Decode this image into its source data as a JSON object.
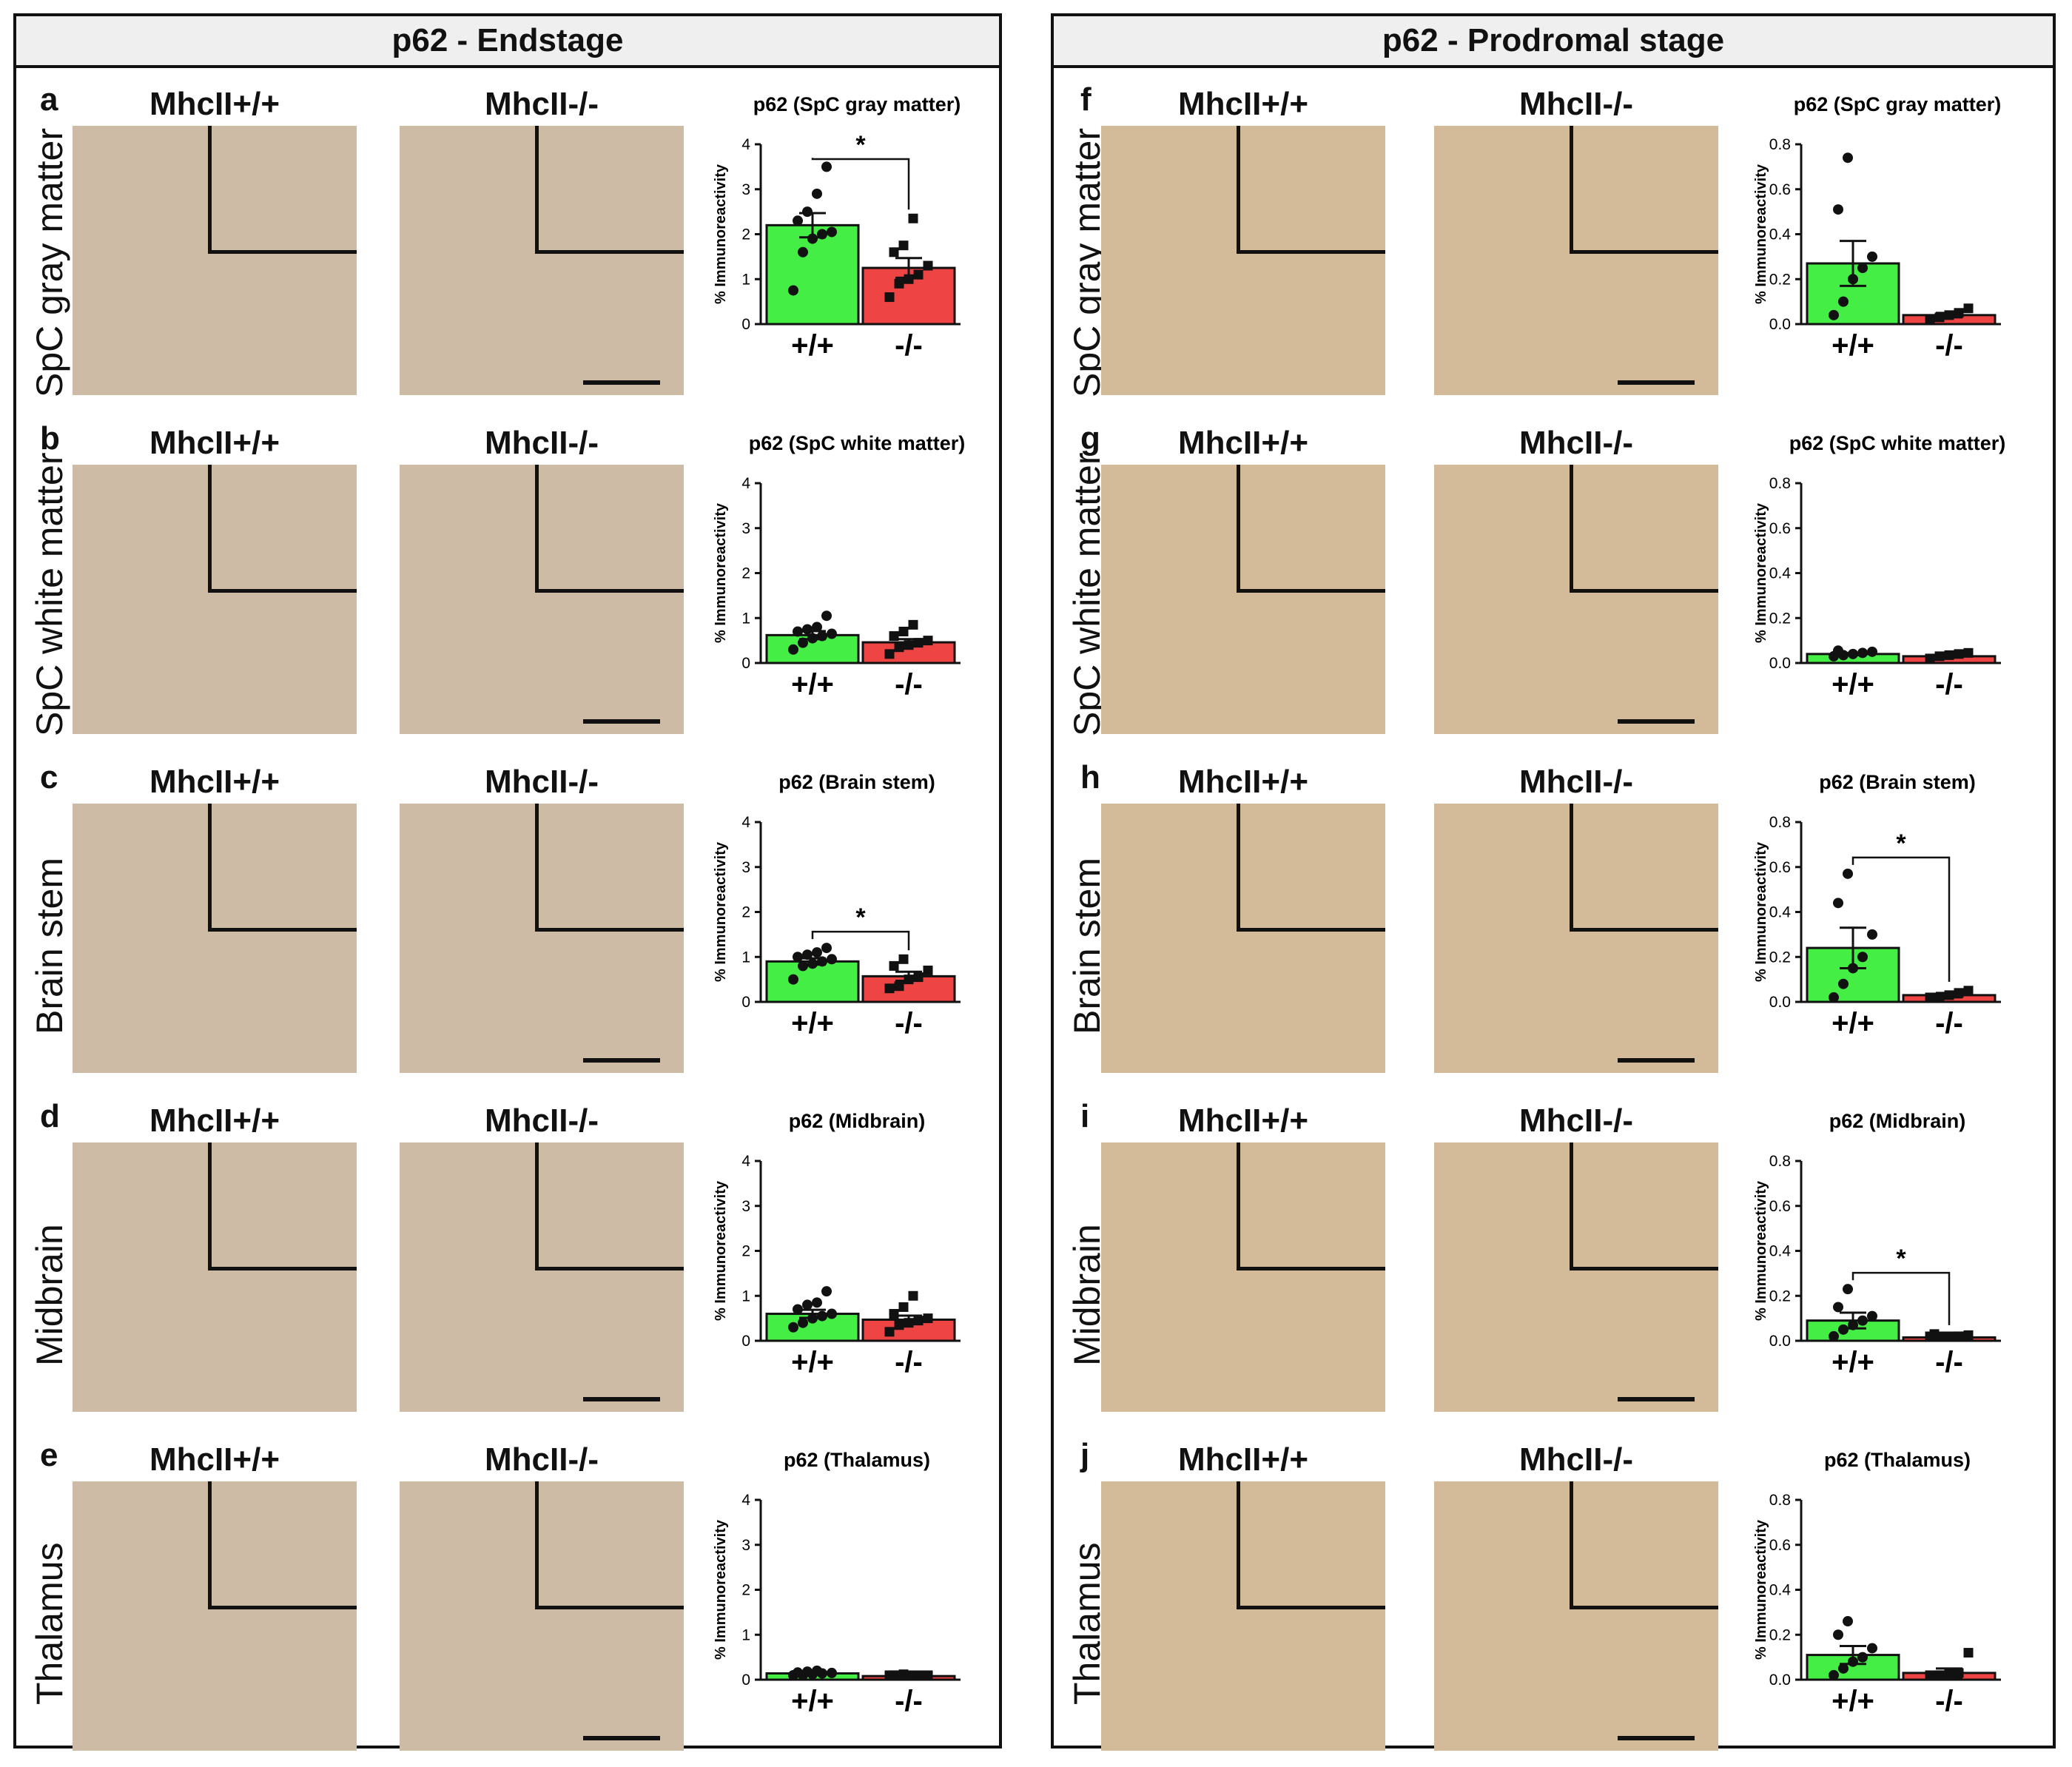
{
  "colors": {
    "green_bar": "#44ee44",
    "red_bar": "#ee4444",
    "tissue_left": "#cdbba6",
    "tissue_right": "#d3ba98"
  },
  "panels": [
    {
      "title": "p62 - Endstage",
      "rows": [
        {
          "letter": "a",
          "region": "SpC gray matter",
          "col1_title": "MhcII+/+",
          "col2_title": "MhcII-/-"
        },
        {
          "letter": "b",
          "region": "SpC white matter",
          "col1_title": "MhcII+/+",
          "col2_title": "MhcII-/-"
        },
        {
          "letter": "c",
          "region": "Brain stem",
          "col1_title": "MhcII+/+",
          "col2_title": "MhcII-/-"
        },
        {
          "letter": "d",
          "region": "Midbrain",
          "col1_title": "MhcII+/+",
          "col2_title": "MhcII-/-"
        },
        {
          "letter": "e",
          "region": "Thalamus",
          "col1_title": "MhcII+/+",
          "col2_title": "MhcII-/-"
        }
      ]
    },
    {
      "title": "p62 - Prodromal stage",
      "rows": [
        {
          "letter": "f",
          "region": "SpC gray matter",
          "col1_title": "MhcII+/+",
          "col2_title": "MhcII-/-"
        },
        {
          "letter": "g",
          "region": "SpC white matter",
          "col1_title": "MhcII+/+",
          "col2_title": "MhcII-/-"
        },
        {
          "letter": "h",
          "region": "Brain stem",
          "col1_title": "MhcII+/+",
          "col2_title": "MhcII-/-"
        },
        {
          "letter": "i",
          "region": "Midbrain",
          "col1_title": "MhcII+/+",
          "col2_title": "MhcII-/-"
        },
        {
          "letter": "j",
          "region": "Thalamus",
          "col1_title": "MhcII+/+",
          "col2_title": "MhcII-/-"
        }
      ]
    }
  ],
  "chart_data": [
    {
      "type": "bar",
      "panel": "a",
      "title": "p62 (SpC gray matter)",
      "ylabel": "% Immunoreactivity",
      "ylim": [
        0,
        4
      ],
      "yticks": [
        "0",
        "1",
        "2",
        "3",
        "4"
      ],
      "categories": [
        "+/+",
        "-/-"
      ],
      "values": [
        2.2,
        1.25
      ],
      "errors": [
        0.27,
        0.22
      ],
      "points": [
        [
          0.75,
          1.6,
          1.9,
          2.0,
          2.05,
          2.3,
          2.5,
          2.9,
          3.5
        ],
        [
          0.6,
          0.9,
          1.0,
          1.1,
          1.3,
          1.6,
          1.75,
          2.35
        ]
      ],
      "significance": "*"
    },
    {
      "type": "bar",
      "panel": "b",
      "title": "p62 (SpC white matter)",
      "ylabel": "% Immunoreactivity",
      "ylim": [
        0,
        4
      ],
      "yticks": [
        "0",
        "1",
        "2",
        "3",
        "4"
      ],
      "categories": [
        "+/+",
        "-/-"
      ],
      "values": [
        0.62,
        0.46
      ],
      "errors": [
        0.09,
        0.07
      ],
      "points": [
        [
          0.3,
          0.45,
          0.55,
          0.6,
          0.65,
          0.7,
          0.75,
          0.8,
          1.05
        ],
        [
          0.2,
          0.35,
          0.4,
          0.45,
          0.5,
          0.6,
          0.7,
          0.85
        ]
      ],
      "significance": ""
    },
    {
      "type": "bar",
      "panel": "c",
      "title": "p62 (Brain stem)",
      "ylabel": "% Immunoreactivity",
      "ylim": [
        0,
        4
      ],
      "yticks": [
        "0",
        "1",
        "2",
        "3",
        "4"
      ],
      "categories": [
        "+/+",
        "-/-"
      ],
      "values": [
        0.9,
        0.57
      ],
      "errors": [
        0.07,
        0.1
      ],
      "points": [
        [
          0.5,
          0.8,
          0.85,
          0.9,
          0.95,
          1.0,
          1.05,
          1.1,
          1.2
        ],
        [
          0.3,
          0.35,
          0.5,
          0.55,
          0.7,
          0.8,
          0.95
        ]
      ],
      "significance": "*"
    },
    {
      "type": "bar",
      "panel": "d",
      "title": "p62 (Midbrain)",
      "ylabel": "% Immunoreactivity",
      "ylim": [
        0,
        4
      ],
      "yticks": [
        "0",
        "1",
        "2",
        "3",
        "4"
      ],
      "categories": [
        "+/+",
        "-/-"
      ],
      "values": [
        0.6,
        0.47
      ],
      "errors": [
        0.09,
        0.09
      ],
      "points": [
        [
          0.3,
          0.4,
          0.5,
          0.55,
          0.6,
          0.7,
          0.8,
          0.85,
          1.1
        ],
        [
          0.2,
          0.35,
          0.4,
          0.45,
          0.5,
          0.6,
          0.75,
          1.0
        ]
      ],
      "significance": ""
    },
    {
      "type": "bar",
      "panel": "e",
      "title": "p62 (Thalamus)",
      "ylabel": "% Immunoreactivity",
      "ylim": [
        0,
        4
      ],
      "yticks": [
        "0",
        "1",
        "2",
        "3",
        "4"
      ],
      "categories": [
        "+/+",
        "-/-"
      ],
      "values": [
        0.14,
        0.08
      ],
      "errors": [
        0.02,
        0.02
      ],
      "points": [
        [
          0.08,
          0.1,
          0.12,
          0.14,
          0.15,
          0.16,
          0.18,
          0.2
        ],
        [
          0.04,
          0.05,
          0.06,
          0.07,
          0.08,
          0.1,
          0.12
        ]
      ],
      "significance": ""
    },
    {
      "type": "bar",
      "panel": "f",
      "title": "p62 (SpC gray matter)",
      "ylabel": "% Immunoreactivity",
      "ylim": [
        0,
        0.8
      ],
      "yticks": [
        "0.0",
        "0.2",
        "0.4",
        "0.6",
        "0.8"
      ],
      "categories": [
        "+/+",
        "-/-"
      ],
      "values": [
        0.27,
        0.04
      ],
      "errors": [
        0.1,
        0.01
      ],
      "points": [
        [
          0.04,
          0.1,
          0.2,
          0.25,
          0.3,
          0.51,
          0.74
        ],
        [
          0.02,
          0.03,
          0.04,
          0.05,
          0.07
        ]
      ],
      "significance": ""
    },
    {
      "type": "bar",
      "panel": "g",
      "title": "p62 (SpC white matter)",
      "ylabel": "% Immunoreactivity",
      "ylim": [
        0,
        0.8
      ],
      "yticks": [
        "0.0",
        "0.2",
        "0.4",
        "0.6",
        "0.8"
      ],
      "categories": [
        "+/+",
        "-/-"
      ],
      "values": [
        0.04,
        0.03
      ],
      "errors": [
        0.005,
        0.005
      ],
      "points": [
        [
          0.03,
          0.035,
          0.04,
          0.045,
          0.05,
          0.055
        ],
        [
          0.02,
          0.03,
          0.035,
          0.04,
          0.045
        ]
      ],
      "significance": ""
    },
    {
      "type": "bar",
      "panel": "h",
      "title": "p62 (Brain stem)",
      "ylabel": "% Immunoreactivity",
      "ylim": [
        0,
        0.8
      ],
      "yticks": [
        "0.0",
        "0.2",
        "0.4",
        "0.6",
        "0.8"
      ],
      "categories": [
        "+/+",
        "-/-"
      ],
      "values": [
        0.24,
        0.03
      ],
      "errors": [
        0.09,
        0.01
      ],
      "points": [
        [
          0.02,
          0.08,
          0.15,
          0.2,
          0.3,
          0.44,
          0.57
        ],
        [
          0.01,
          0.02,
          0.03,
          0.04,
          0.05
        ]
      ],
      "significance": "*"
    },
    {
      "type": "bar",
      "panel": "i",
      "title": "p62 (Midbrain)",
      "ylabel": "% Immunoreactivity",
      "ylim": [
        0,
        0.8
      ],
      "yticks": [
        "0.0",
        "0.2",
        "0.4",
        "0.6",
        "0.8"
      ],
      "categories": [
        "+/+",
        "-/-"
      ],
      "values": [
        0.09,
        0.015
      ],
      "errors": [
        0.035,
        0.005
      ],
      "points": [
        [
          0.02,
          0.05,
          0.07,
          0.09,
          0.11,
          0.15,
          0.23
        ],
        [
          0.005,
          0.01,
          0.015,
          0.02,
          0.025,
          0.03
        ]
      ],
      "significance": "*"
    },
    {
      "type": "bar",
      "panel": "j",
      "title": "p62 (Thalamus)",
      "ylabel": "% Immunoreactivity",
      "ylim": [
        0,
        0.8
      ],
      "yticks": [
        "0.0",
        "0.2",
        "0.4",
        "0.6",
        "0.8"
      ],
      "categories": [
        "+/+",
        "-/-"
      ],
      "values": [
        0.11,
        0.03
      ],
      "errors": [
        0.04,
        0.02
      ],
      "points": [
        [
          0.02,
          0.05,
          0.08,
          0.1,
          0.14,
          0.2,
          0.26
        ],
        [
          0.01,
          0.02,
          0.025,
          0.03,
          0.12
        ]
      ],
      "significance": ""
    }
  ]
}
